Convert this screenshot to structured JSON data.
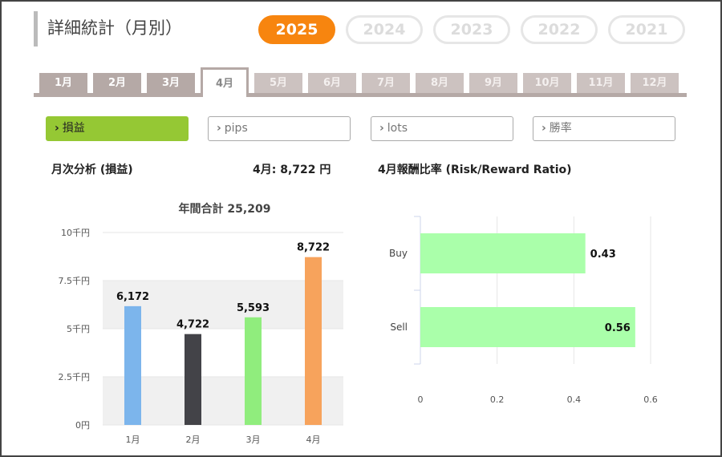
{
  "header": {
    "title": "詳細統計（月別）"
  },
  "years": [
    {
      "label": "2025",
      "active": true
    },
    {
      "label": "2024",
      "active": false
    },
    {
      "label": "2023",
      "active": false
    },
    {
      "label": "2022",
      "active": false
    },
    {
      "label": "2021",
      "active": false
    }
  ],
  "months": [
    {
      "label": "1月",
      "state": "normal"
    },
    {
      "label": "2月",
      "state": "normal"
    },
    {
      "label": "3月",
      "state": "normal"
    },
    {
      "label": "4月",
      "state": "active"
    },
    {
      "label": "5月",
      "state": "faded"
    },
    {
      "label": "6月",
      "state": "faded"
    },
    {
      "label": "7月",
      "state": "faded"
    },
    {
      "label": "8月",
      "state": "faded"
    },
    {
      "label": "9月",
      "state": "faded"
    },
    {
      "label": "10月",
      "state": "faded"
    },
    {
      "label": "11月",
      "state": "faded"
    },
    {
      "label": "12月",
      "state": "faded"
    }
  ],
  "metrics": [
    {
      "label": "損益",
      "active": true
    },
    {
      "label": "pips",
      "active": false
    },
    {
      "label": "lots",
      "active": false
    },
    {
      "label": "勝率",
      "active": false
    }
  ],
  "labels": {
    "monthly_analysis": "月次分析 (損益)",
    "month_value": "4月:  8,722 円",
    "ratio_title": "4月報酬比率 (Risk/Reward Ratio)"
  },
  "chart_data": [
    {
      "type": "bar",
      "title": "年間合計 25,209",
      "categories": [
        "1月",
        "2月",
        "3月",
        "4月"
      ],
      "values": [
        6172,
        4722,
        5593,
        8722
      ],
      "data_labels": [
        "6,172",
        "4,722",
        "5,593",
        "8,722"
      ],
      "bar_colors": [
        "#7cb5ec",
        "#434348",
        "#90ed7d",
        "#f7a35c"
      ],
      "ylim": [
        0,
        10000
      ],
      "y_ticks": [
        0,
        2500,
        5000,
        7500,
        10000
      ],
      "y_tick_labels": [
        "0円",
        "2.5千円",
        "5千円",
        "7.5千円",
        "10千円"
      ],
      "alternate_bands": true
    },
    {
      "type": "bar",
      "orientation": "horizontal",
      "categories": [
        "Buy",
        "Sell"
      ],
      "values": [
        0.43,
        0.56
      ],
      "data_labels": [
        "0.43",
        "0.56"
      ],
      "bar_color": "#aaffaa",
      "xlim": [
        0,
        0.6
      ],
      "x_ticks": [
        0,
        0.2,
        0.4,
        0.6
      ],
      "x_tick_labels": [
        "0",
        "0.2",
        "0.4",
        "0.6"
      ],
      "grid": true
    }
  ]
}
